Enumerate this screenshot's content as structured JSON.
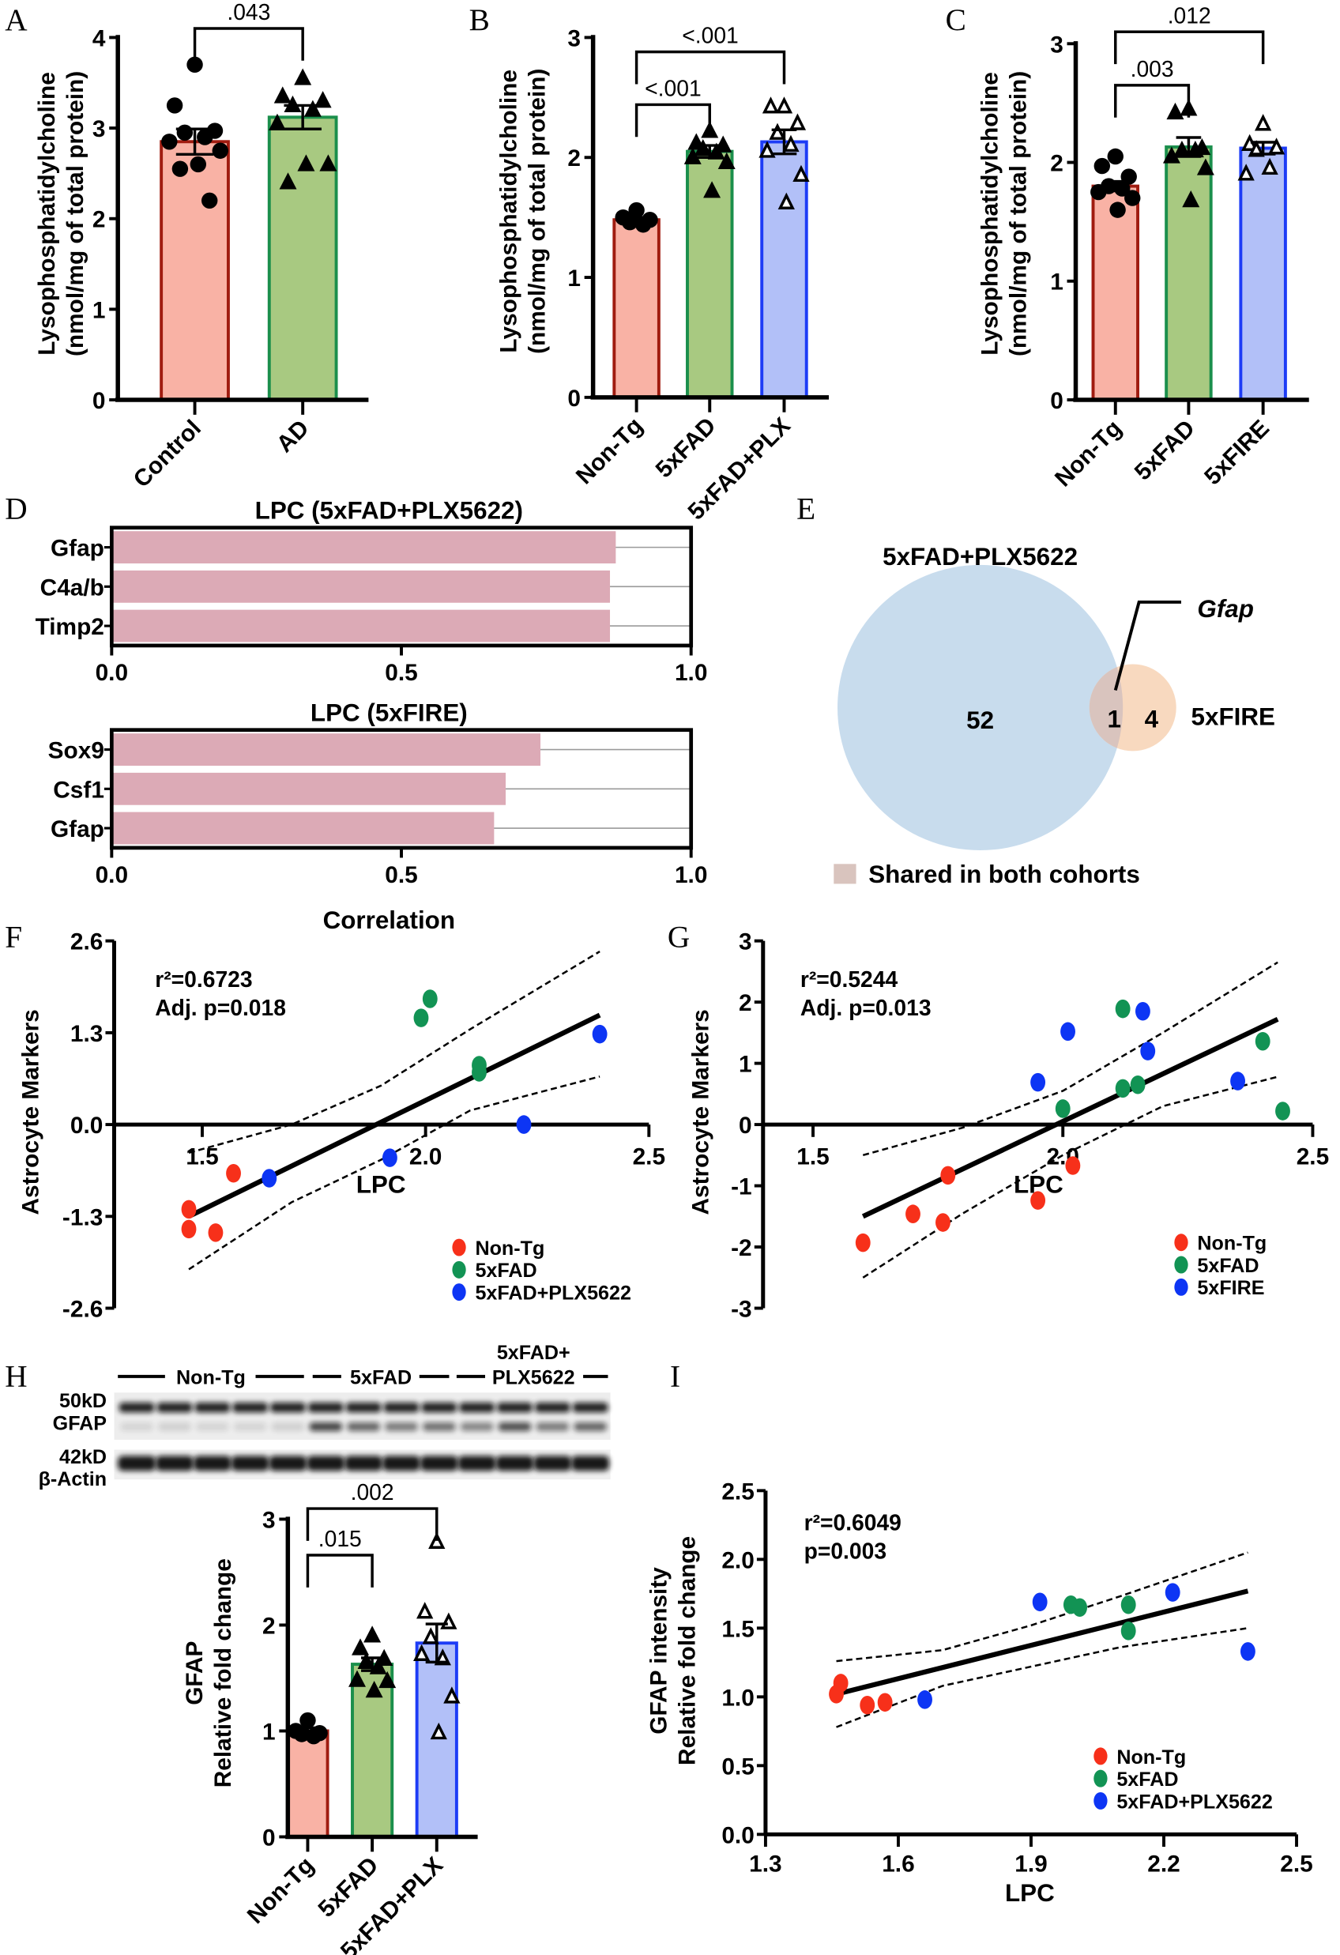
{
  "panel_labels": [
    "A",
    "B",
    "C",
    "D",
    "E",
    "F",
    "G",
    "H",
    "I"
  ],
  "colors": {
    "group_fill": [
      "#f9b2a5",
      "#a8c981",
      "#b2c0f8"
    ],
    "group_edge": [
      "#a01c10",
      "#1b8f4c",
      "#1d3cf6"
    ],
    "scatter": [
      "#f7301a",
      "#129354",
      "#0d35f4"
    ],
    "hbar": "#dcaab6",
    "venn_left": "#c8dced",
    "venn_right": "#f8d9bf",
    "venn_shared": "#d9c4be"
  },
  "chart_data": [
    {
      "panel": "A",
      "type": "bar",
      "categories": [
        "Control",
        "AD"
      ],
      "values": [
        2.85,
        3.12
      ],
      "sem": [
        0.14,
        0.13
      ],
      "markers": [
        "filled-circle",
        "filled-triangle"
      ],
      "points": [
        [
          3.7,
          3.25,
          2.97,
          2.95,
          2.9,
          2.85,
          2.75,
          2.6,
          2.55,
          2.2
        ],
        [
          3.55,
          3.35,
          3.3,
          3.25,
          3.2,
          3.05,
          2.6,
          2.6,
          2.4
        ]
      ],
      "ylabel": [
        "Lysophosphatidylcholine",
        "(nmol/mg of total protein)"
      ],
      "ylim": [
        0,
        4
      ],
      "yticks": [
        "0",
        "1",
        "2",
        "3",
        "4"
      ],
      "comparisons": [
        {
          "groups": [
            0,
            1
          ],
          "p": ".043",
          "y": 4.1
        }
      ]
    },
    {
      "panel": "B",
      "type": "bar",
      "categories": [
        "Non-Tg",
        "5xFAD",
        "5xFAD+PLX"
      ],
      "values": [
        1.48,
        2.05,
        2.13
      ],
      "sem": [
        0.02,
        0.05,
        0.1
      ],
      "markers": [
        "filled-circle",
        "filled-triangle",
        "open-triangle"
      ],
      "points": [
        [
          1.56,
          1.5,
          1.48,
          1.46,
          1.44
        ],
        [
          2.22,
          2.12,
          2.1,
          2.07,
          2.04,
          2.0,
          1.96,
          1.72
        ],
        [
          2.42,
          2.42,
          2.28,
          2.2,
          2.1,
          2.05,
          1.85,
          1.62
        ]
      ],
      "ylabel": [
        "Lysophosphatidylcholine",
        "(nmol/mg of total protein)"
      ],
      "ylim": [
        0,
        3
      ],
      "yticks": [
        "0",
        "1",
        "2",
        "3"
      ],
      "comparisons": [
        {
          "groups": [
            0,
            1
          ],
          "p": "<.001",
          "y": 2.44
        },
        {
          "groups": [
            0,
            2
          ],
          "p": "<.001",
          "y": 2.88
        }
      ]
    },
    {
      "panel": "C",
      "type": "bar",
      "categories": [
        "Non-Tg",
        "5xFAD",
        "5xFIRE"
      ],
      "values": [
        1.8,
        2.13,
        2.12
      ],
      "sem": [
        0.04,
        0.08,
        0.05
      ],
      "markers": [
        "filled-circle",
        "filled-triangle",
        "open-triangle"
      ],
      "points": [
        [
          2.05,
          1.97,
          1.88,
          1.8,
          1.78,
          1.75,
          1.7,
          1.6
        ],
        [
          2.45,
          2.42,
          2.12,
          2.1,
          2.1,
          2.05,
          1.95,
          1.68
        ],
        [
          2.32,
          2.15,
          2.12,
          2.1,
          1.95,
          1.9
        ]
      ],
      "ylabel": [
        "Lysophosphatidylcholine",
        "(nmol/mg of total protein)"
      ],
      "ylim": [
        0,
        3
      ],
      "yticks": [
        "0",
        "1",
        "2",
        "3"
      ],
      "comparisons": [
        {
          "groups": [
            0,
            1
          ],
          "p": ".003",
          "y": 2.65
        },
        {
          "groups": [
            0,
            2
          ],
          "p": ".012",
          "y": 3.1
        }
      ]
    },
    {
      "panel": "D",
      "type": "bar",
      "orientation": "horizontal",
      "title": "LPC (5xFAD+PLX5622)",
      "categories": [
        "Gfap",
        "C4a/b",
        "Timp2"
      ],
      "values": [
        0.87,
        0.86,
        0.86
      ],
      "xlim": [
        0,
        1
      ],
      "xticks": [
        "0.0",
        "0.5",
        "1.0"
      ]
    },
    {
      "panel": "D",
      "type": "bar",
      "orientation": "horizontal",
      "title": "LPC (5xFIRE)",
      "categories": [
        "Sox9",
        "Csf1",
        "Gfap"
      ],
      "values": [
        0.74,
        0.68,
        0.66
      ],
      "xlim": [
        0,
        1
      ],
      "xticks": [
        "0.0",
        "0.5",
        "1.0"
      ],
      "xlabel": "Correlation"
    },
    {
      "panel": "F",
      "type": "scatter",
      "series": [
        {
          "name": "Non-Tg",
          "x": [
            1.47,
            1.47,
            1.53,
            1.57
          ],
          "y": [
            -1.2,
            -1.48,
            -1.53,
            -0.69
          ]
        },
        {
          "name": "5xFAD",
          "x": [
            1.99,
            2.01,
            2.12,
            2.12
          ],
          "y": [
            1.51,
            1.78,
            0.84,
            0.74
          ]
        },
        {
          "name": "5xFAD+PLX5622",
          "x": [
            1.65,
            1.92,
            2.22,
            2.39
          ],
          "y": [
            -0.76,
            -0.47,
            0.0,
            1.28
          ]
        }
      ],
      "xlabel": "LPC",
      "ylabel": [
        "Astrocyte Markers"
      ],
      "xlim": [
        1.3,
        2.5
      ],
      "ylim": [
        -2.6,
        2.6
      ],
      "xticks": [
        "1.5",
        "2.0",
        "2.5"
      ],
      "yticks": [
        "-2.6",
        "-1.3",
        "0.0",
        "1.3",
        "2.6"
      ],
      "stats": [
        "r²=0.6723",
        "Adj. p=0.018"
      ],
      "fit": {
        "x": [
          1.47,
          2.39
        ],
        "y": [
          -1.3,
          1.55
        ]
      },
      "ci": {
        "x": [
          1.47,
          1.7,
          1.9,
          2.1,
          2.39
        ],
        "upper": [
          -0.4,
          0.0,
          0.55,
          1.35,
          2.45
        ],
        "lower": [
          -2.05,
          -1.1,
          -0.5,
          0.2,
          0.68
        ]
      },
      "legend": "bottom-right"
    },
    {
      "panel": "G",
      "type": "scatter",
      "series": [
        {
          "name": "Non-Tg",
          "x": [
            1.6,
            1.7,
            1.76,
            1.77,
            1.95,
            2.02
          ],
          "y": [
            -1.93,
            -1.46,
            -1.6,
            -0.83,
            -1.24,
            -0.67
          ]
        },
        {
          "name": "5xFAD",
          "x": [
            2.0,
            2.12,
            2.12,
            2.15,
            2.4,
            2.44
          ],
          "y": [
            0.26,
            1.89,
            0.59,
            0.65,
            1.36,
            0.22
          ]
        },
        {
          "name": "5xFIRE",
          "x": [
            1.95,
            2.01,
            2.16,
            2.17,
            2.35
          ],
          "y": [
            0.69,
            1.52,
            1.85,
            1.2,
            0.71
          ]
        }
      ],
      "xlabel": "LPC",
      "ylabel": [
        "Astrocyte Markers"
      ],
      "xlim": [
        1.4,
        2.5
      ],
      "ylim": [
        -3,
        3
      ],
      "xticks": [
        "1.5",
        "2.0",
        "2.5"
      ],
      "yticks": [
        "-3",
        "-2",
        "-1",
        "0",
        "1",
        "2",
        "3"
      ],
      "stats": [
        "r²=0.5244",
        "Adj. p=0.013"
      ],
      "fit": {
        "x": [
          1.6,
          2.43
        ],
        "y": [
          -1.5,
          1.72
        ]
      },
      "ci": {
        "x": [
          1.6,
          1.8,
          2.0,
          2.2,
          2.43
        ],
        "upper": [
          -0.5,
          -0.05,
          0.55,
          1.5,
          2.65
        ],
        "lower": [
          -2.5,
          -1.45,
          -0.5,
          0.3,
          0.78
        ]
      },
      "legend": "bottom-right"
    },
    {
      "panel": "H",
      "type": "bar",
      "categories": [
        "Non-Tg",
        "5xFAD",
        "5xFAD+PLX"
      ],
      "values": [
        1.0,
        1.63,
        1.83
      ],
      "sem": [
        0.03,
        0.06,
        0.18
      ],
      "markers": [
        "filled-circle",
        "filled-triangle",
        "open-triangle"
      ],
      "points": [
        [
          1.1,
          1.0,
          0.98,
          0.97,
          0.95
        ],
        [
          1.9,
          1.78,
          1.68,
          1.65,
          1.6,
          1.48,
          1.47,
          1.38
        ],
        [
          2.78,
          2.12,
          2.02,
          1.88,
          1.68,
          1.72,
          1.32,
          0.98
        ]
      ],
      "ylabel": [
        "GFAP",
        "Relative fold change"
      ],
      "ylim": [
        0,
        3
      ],
      "yticks": [
        "0",
        "1",
        "2",
        "3"
      ],
      "comparisons": [
        {
          "groups": [
            0,
            1
          ],
          "p": ".015",
          "y": 2.66
        },
        {
          "groups": [
            0,
            2
          ],
          "p": ".002",
          "y": 3.1
        }
      ]
    },
    {
      "panel": "I",
      "type": "scatter",
      "series": [
        {
          "name": "Non-Tg",
          "x": [
            1.46,
            1.47,
            1.53,
            1.57
          ],
          "y": [
            1.02,
            1.1,
            0.94,
            0.96
          ]
        },
        {
          "name": "5xFAD",
          "x": [
            1.99,
            2.01,
            2.12,
            2.12
          ],
          "y": [
            1.67,
            1.65,
            1.67,
            1.48
          ]
        },
        {
          "name": "5xFAD+PLX5622",
          "x": [
            1.66,
            1.92,
            2.22,
            2.39
          ],
          "y": [
            0.98,
            1.69,
            1.76,
            1.33
          ]
        }
      ],
      "xlabel": "LPC",
      "ylabel": [
        "GFAP intensity",
        "Relative fold change"
      ],
      "xlim": [
        1.3,
        2.5
      ],
      "ylim": [
        0,
        2.5
      ],
      "xticks": [
        "1.3",
        "1.6",
        "1.9",
        "2.2",
        "2.5"
      ],
      "yticks": [
        "0.0",
        "0.5",
        "1.0",
        "1.5",
        "2.0",
        "2.5"
      ],
      "stats": [
        "r²=0.6049",
        "p=0.003"
      ],
      "fit": {
        "x": [
          1.46,
          2.39
        ],
        "y": [
          1.02,
          1.77
        ]
      },
      "ci": {
        "x": [
          1.46,
          1.7,
          1.9,
          2.1,
          2.39
        ],
        "upper": [
          1.26,
          1.34,
          1.52,
          1.73,
          2.05
        ],
        "lower": [
          0.78,
          1.08,
          1.22,
          1.36,
          1.5
        ]
      },
      "legend": "bottom-right"
    }
  ],
  "venn": {
    "left_label": "5xFAD+PLX5622",
    "right_label": "5xFIRE",
    "only_left": "52",
    "shared": "1",
    "only_right": "4",
    "callout": "Gfap",
    "legend": "Shared in both cohorts"
  },
  "blot": {
    "groups": [
      {
        "label": [
          "Non-Tg"
        ],
        "lanes": 5
      },
      {
        "label": [
          "5xFAD"
        ],
        "lanes": 4
      },
      {
        "label": [
          "5xFAD+",
          "PLX5622"
        ],
        "lanes": 4
      }
    ],
    "rows": [
      {
        "size": "50kD",
        "name": "GFAP"
      },
      {
        "size": "42kD",
        "name": "β-Actin"
      }
    ],
    "gfap_lower_band_intensity": [
      0.1,
      0.12,
      0.1,
      0.1,
      0.12,
      0.75,
      0.6,
      0.5,
      0.55,
      0.45,
      0.7,
      0.5,
      0.6
    ]
  }
}
